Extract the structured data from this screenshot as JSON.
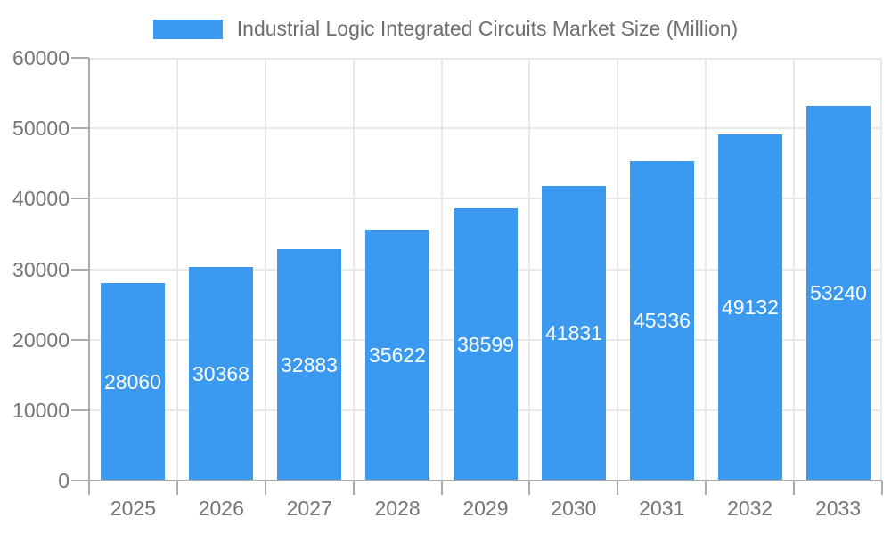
{
  "legend": {
    "label": "Industrial Logic Integrated Circuits Market Size (Million)"
  },
  "colors": {
    "bar": "#3b99ef",
    "grid": "#e9e9e9",
    "axis": "#ababab",
    "tick": "#ababab",
    "axis_label": "#757575",
    "legend_text": "#6e6e6e",
    "value_label": "#ffffff",
    "background": "#ffffff"
  },
  "chart_data": {
    "type": "bar",
    "title": "",
    "categories": [
      "2025",
      "2026",
      "2027",
      "2028",
      "2029",
      "2030",
      "2031",
      "2032",
      "2033"
    ],
    "series": [
      {
        "name": "Industrial Logic Integrated Circuits Market Size (Million)",
        "values": [
          28060,
          30368,
          32883,
          35622,
          38599,
          41831,
          45336,
          49132,
          53240
        ]
      }
    ],
    "xlabel": "",
    "ylabel": "",
    "ylim": [
      0,
      60000
    ],
    "yticks": [
      0,
      10000,
      20000,
      30000,
      40000,
      50000,
      60000
    ],
    "grid": true,
    "legend_position": "top-center",
    "value_labels_position": "inside-center"
  }
}
